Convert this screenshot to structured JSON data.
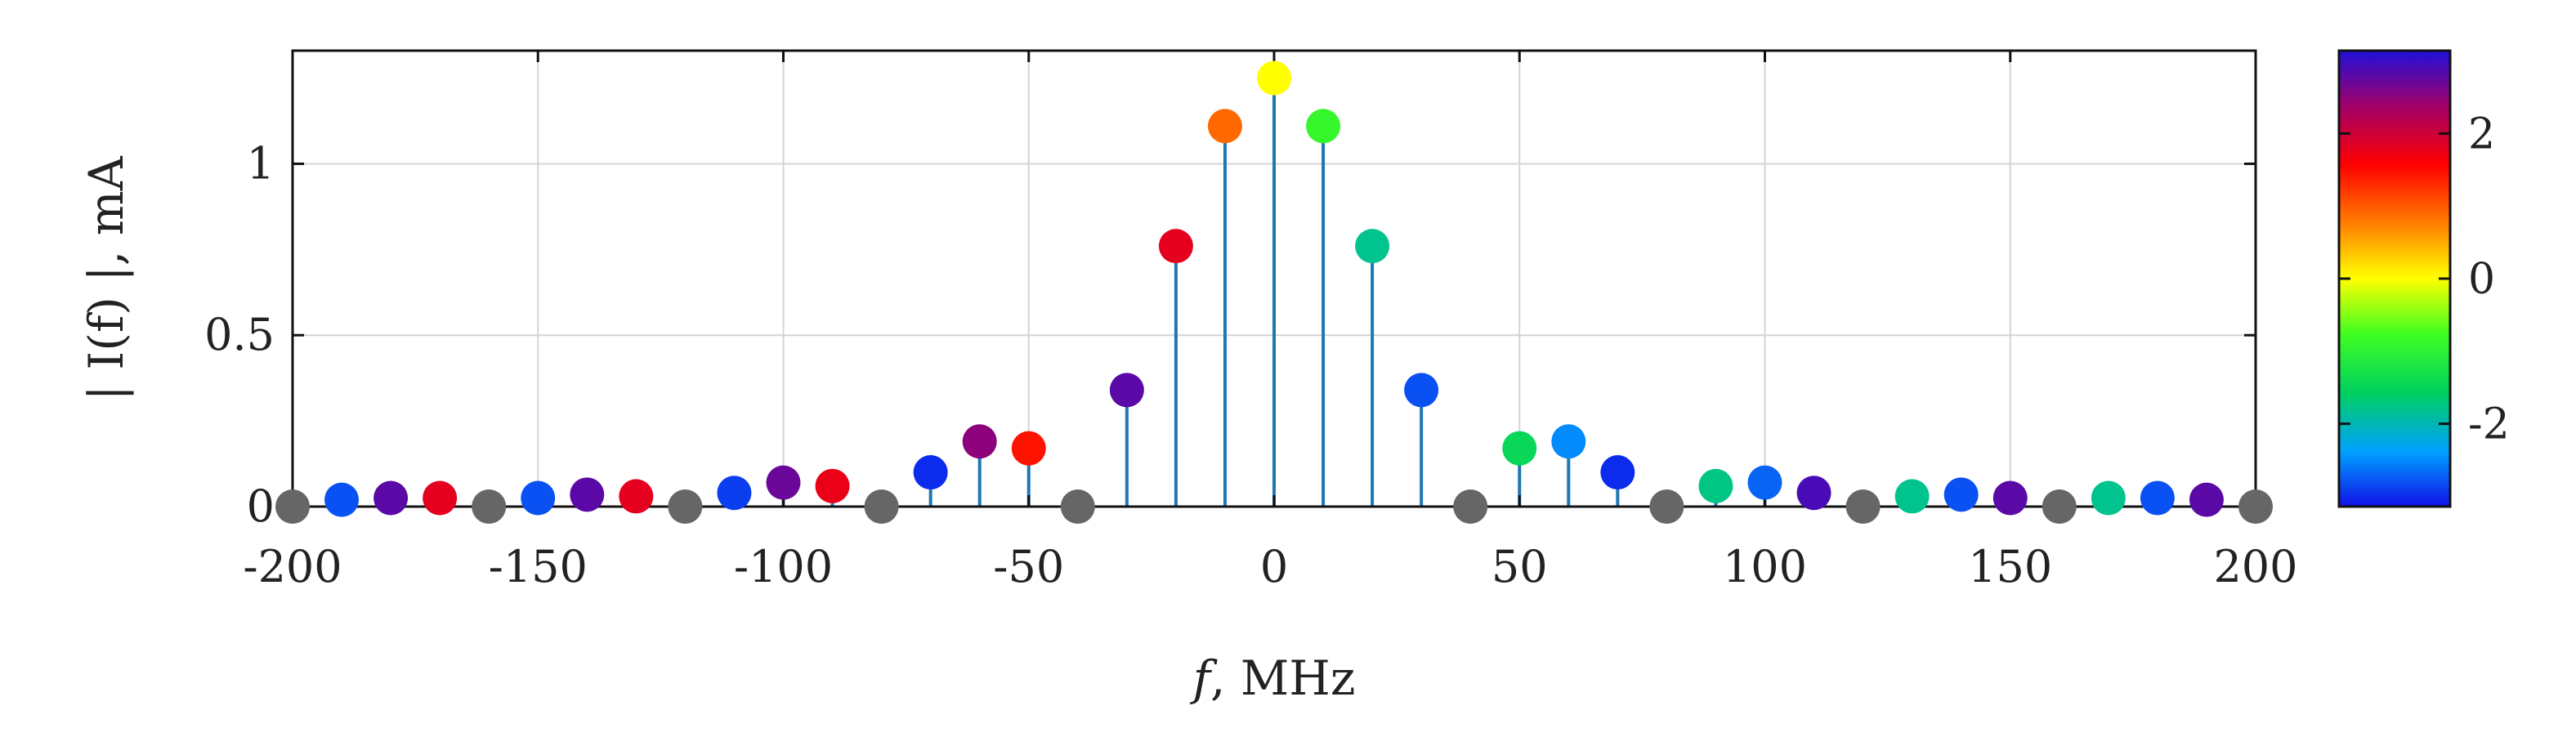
{
  "chart_data": {
    "type": "stem",
    "title": "",
    "xlabel_italic": "f",
    "xlabel_rest": ", MHz",
    "ylabel": "| I(f) |, mA",
    "xlim": [
      -200,
      200
    ],
    "ylim": [
      0,
      1.33
    ],
    "xticks": [
      -200,
      -150,
      -100,
      -50,
      0,
      50,
      100,
      150,
      200
    ],
    "yticks": [
      0,
      0.5,
      1
    ],
    "ytick_labels": [
      "0",
      "0.5",
      "1"
    ],
    "grid": true,
    "stem_color": "#1f77b4",
    "zero_color": "#666666",
    "colorbar": {
      "label_values": [
        2,
        0,
        -2
      ],
      "label_texts": [
        "2",
        "0",
        "-2"
      ],
      "range": [
        -3.1416,
        3.1416
      ],
      "colormap": "jet-like: yellow at 0, red/purple/blue toward +pi, green/cyan/blue toward -pi"
    },
    "points": [
      {
        "f": -200,
        "amp": 0.0,
        "phase": null
      },
      {
        "f": -190,
        "amp": 0.02,
        "phase": -2.8
      },
      {
        "f": -180,
        "amp": 0.025,
        "phase": 2.8
      },
      {
        "f": -170,
        "amp": 0.025,
        "phase": 1.8
      },
      {
        "f": -160,
        "amp": 0.0,
        "phase": null
      },
      {
        "f": -150,
        "amp": 0.025,
        "phase": -2.8
      },
      {
        "f": -140,
        "amp": 0.035,
        "phase": 2.8
      },
      {
        "f": -130,
        "amp": 0.03,
        "phase": 1.8
      },
      {
        "f": -120,
        "amp": 0.0,
        "phase": null
      },
      {
        "f": -110,
        "amp": 0.04,
        "phase": -2.9
      },
      {
        "f": -100,
        "amp": 0.07,
        "phase": 2.7
      },
      {
        "f": -90,
        "amp": 0.06,
        "phase": 1.75
      },
      {
        "f": -80,
        "amp": 0.0,
        "phase": null
      },
      {
        "f": -70,
        "amp": 0.1,
        "phase": -3.0
      },
      {
        "f": -60,
        "amp": 0.19,
        "phase": 2.5
      },
      {
        "f": -50,
        "amp": 0.17,
        "phase": 1.45
      },
      {
        "f": -40,
        "amp": 0.0,
        "phase": null
      },
      {
        "f": -30,
        "amp": 0.34,
        "phase": 2.8
      },
      {
        "f": -20,
        "amp": 0.76,
        "phase": 1.8
      },
      {
        "f": -10,
        "amp": 1.11,
        "phase": 0.9
      },
      {
        "f": 0,
        "amp": 1.25,
        "phase": 0.0
      },
      {
        "f": 10,
        "amp": 1.11,
        "phase": -0.9
      },
      {
        "f": 20,
        "amp": 0.76,
        "phase": -1.8
      },
      {
        "f": 30,
        "amp": 0.34,
        "phase": -2.8
      },
      {
        "f": 40,
        "amp": 0.0,
        "phase": null
      },
      {
        "f": 50,
        "amp": 0.17,
        "phase": -1.45
      },
      {
        "f": 60,
        "amp": 0.19,
        "phase": -2.5
      },
      {
        "f": 70,
        "amp": 0.1,
        "phase": -3.0
      },
      {
        "f": 80,
        "amp": 0.0,
        "phase": null
      },
      {
        "f": 90,
        "amp": 0.06,
        "phase": -1.75
      },
      {
        "f": 100,
        "amp": 0.07,
        "phase": -2.7
      },
      {
        "f": 110,
        "amp": 0.04,
        "phase": 2.9
      },
      {
        "f": 120,
        "amp": 0.0,
        "phase": null
      },
      {
        "f": 130,
        "amp": 0.03,
        "phase": -1.8
      },
      {
        "f": 140,
        "amp": 0.035,
        "phase": -2.8
      },
      {
        "f": 150,
        "amp": 0.025,
        "phase": 2.8
      },
      {
        "f": 160,
        "amp": 0.0,
        "phase": null
      },
      {
        "f": 170,
        "amp": 0.025,
        "phase": -1.8
      },
      {
        "f": 180,
        "amp": 0.025,
        "phase": -2.8
      },
      {
        "f": 190,
        "amp": 0.02,
        "phase": 2.8
      },
      {
        "f": 200,
        "amp": 0.0,
        "phase": null
      }
    ]
  }
}
